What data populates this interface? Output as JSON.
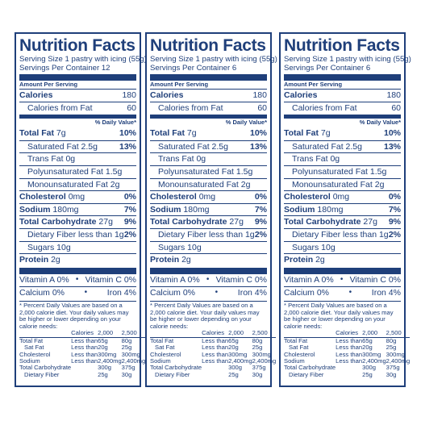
{
  "panels": [
    {
      "title": "Nutrition Facts",
      "serving_size": "Serving Size 1 pastry with icing (55g)",
      "servings": "Servings Per Container 12",
      "amount_per_serving": "Amount Per Serving",
      "calories_label": "Calories",
      "calories_value": "180",
      "calories_fat_label": "Calories from Fat",
      "calories_fat_value": "60",
      "dv_header": "% Daily Value*",
      "nutrients": [
        {
          "name": "Total Fat",
          "amount": "7g",
          "dv": "10%"
        },
        {
          "name": "Saturated Fat 2.5g",
          "amount": "",
          "dv": "13%"
        },
        {
          "name": "Trans Fat 0g",
          "amount": "",
          "dv": ""
        },
        {
          "name": "Polyunsaturated Fat 1.5g",
          "amount": "",
          "dv": ""
        },
        {
          "name": "Monounsaturated Fat 2g",
          "amount": "",
          "dv": ""
        },
        {
          "name": "Cholesterol",
          "amount": "0mg",
          "dv": "0%"
        },
        {
          "name": "Sodium",
          "amount": "180mg",
          "dv": "7%"
        },
        {
          "name": "Total Carbohydrate",
          "amount": "27g",
          "dv": "9%"
        },
        {
          "name": "Dietary Fiber less than 1g",
          "amount": "",
          "dv": "2%"
        },
        {
          "name": "Sugars 10g",
          "amount": "",
          "dv": ""
        },
        {
          "name": "Protein",
          "amount": "2g",
          "dv": ""
        }
      ],
      "vitamin_a": "Vitamin A 0%",
      "vitamin_c": "Vitamin C 0%",
      "calcium": "Calcium 0%",
      "iron": "Iron 4%",
      "bullet": "•",
      "footnote": "* Percent Daily Values are based on a 2,000 calorie diet. Your daily values may be higher or lower depending on your calorie needs:",
      "ft_header": [
        "",
        "Calories",
        "2,000",
        "2,500"
      ],
      "ft_rows": [
        [
          "Total Fat",
          "Less than",
          "65g",
          "80g"
        ],
        [
          "Sat Fat",
          "Less than",
          "20g",
          "25g"
        ],
        [
          "Cholesterol",
          "Less than",
          "300mg",
          "300mg"
        ],
        [
          "Sodium",
          "Less than",
          "2,400mg",
          "2,400mg"
        ],
        [
          "Total Carbohydrate",
          "",
          "300g",
          "375g"
        ],
        [
          "Dietary Fiber",
          "",
          "25g",
          "30g"
        ]
      ]
    },
    {
      "title": "Nutrition Facts",
      "serving_size": "Serving Size 1 pastry with icing (55g)",
      "servings": "Servings Per Container 6",
      "amount_per_serving": "Amount Per Serving",
      "calories_label": "Calories",
      "calories_value": "180",
      "calories_fat_label": "Calories from Fat",
      "calories_fat_value": "60",
      "dv_header": "% Daily Value*",
      "nutrients": [
        {
          "name": "Total Fat",
          "amount": "7g",
          "dv": "10%"
        },
        {
          "name": "Saturated Fat 2.5g",
          "amount": "",
          "dv": "13%"
        },
        {
          "name": "Trans Fat 0g",
          "amount": "",
          "dv": ""
        },
        {
          "name": "Polyunsaturated Fat 1.5g",
          "amount": "",
          "dv": ""
        },
        {
          "name": "Monounsaturated Fat 2g",
          "amount": "",
          "dv": ""
        },
        {
          "name": "Cholesterol",
          "amount": "0mg",
          "dv": "0%"
        },
        {
          "name": "Sodium",
          "amount": "180mg",
          "dv": "7%"
        },
        {
          "name": "Total Carbohydrate",
          "amount": "27g",
          "dv": "9%"
        },
        {
          "name": "Dietary Fiber less than 1g",
          "amount": "",
          "dv": "2%"
        },
        {
          "name": "Sugars 10g",
          "amount": "",
          "dv": ""
        },
        {
          "name": "Protein",
          "amount": "2g",
          "dv": ""
        }
      ],
      "vitamin_a": "Vitamin A 0%",
      "vitamin_c": "Vitamin C 0%",
      "calcium": "Calcium 0%",
      "iron": "Iron 4%",
      "bullet": "•",
      "footnote": "* Percent Daily Values are based on a 2,000 calorie diet. Your daily values may be higher or lower depending on your calorie needs:",
      "ft_header": [
        "",
        "Calories",
        "2,000",
        "2,500"
      ],
      "ft_rows": [
        [
          "Total Fat",
          "Less than",
          "65g",
          "80g"
        ],
        [
          "Sat Fat",
          "Less than",
          "20g",
          "25g"
        ],
        [
          "Cholesterol",
          "Less than",
          "300mg",
          "300mg"
        ],
        [
          "Sodium",
          "Less than",
          "2,400mg",
          "2,400mg"
        ],
        [
          "Total Carbohydrate",
          "",
          "300g",
          "375g"
        ],
        [
          "Dietary Fiber",
          "",
          "25g",
          "30g"
        ]
      ]
    },
    {
      "title": "Nutrition Facts",
      "serving_size": "Serving Size 1 pastry with icing (55g)",
      "servings": "Servings Per Container 6",
      "amount_per_serving": "Amount Per Serving",
      "calories_label": "Calories",
      "calories_value": "180",
      "calories_fat_label": "Calories from Fat",
      "calories_fat_value": "60",
      "dv_header": "% Daily Value*",
      "nutrients": [
        {
          "name": "Total Fat",
          "amount": "7g",
          "dv": "10%"
        },
        {
          "name": "Saturated Fat 2.5g",
          "amount": "",
          "dv": "13%"
        },
        {
          "name": "Trans Fat 0g",
          "amount": "",
          "dv": ""
        },
        {
          "name": "Polyunsaturated Fat 1.5g",
          "amount": "",
          "dv": ""
        },
        {
          "name": "Monounsaturated Fat 2g",
          "amount": "",
          "dv": ""
        },
        {
          "name": "Cholesterol",
          "amount": "0mg",
          "dv": "0%"
        },
        {
          "name": "Sodium",
          "amount": "180mg",
          "dv": "7%"
        },
        {
          "name": "Total Carbohydrate",
          "amount": "27g",
          "dv": "9%"
        },
        {
          "name": "Dietary Fiber less than 1g",
          "amount": "",
          "dv": "2%"
        },
        {
          "name": "Sugars 10g",
          "amount": "",
          "dv": ""
        },
        {
          "name": "Protein",
          "amount": "2g",
          "dv": ""
        }
      ],
      "vitamin_a": "Vitamin A 0%",
      "vitamin_c": "Vitamin C 0%",
      "calcium": "Calcium 0%",
      "iron": "Iron 4%",
      "bullet": "•",
      "footnote": "* Percent Daily Values are based on a 2,000 calorie diet. Your daily values may be higher or lower depending on your calorie needs:",
      "ft_header": [
        "",
        "Calories",
        "2,000",
        "2,500"
      ],
      "ft_rows": [
        [
          "Total Fat",
          "Less than",
          "65g",
          "80g"
        ],
        [
          "Sat Fat",
          "Less than",
          "20g",
          "25g"
        ],
        [
          "Cholesterol",
          "Less than",
          "300mg",
          "300mg"
        ],
        [
          "Sodium",
          "Less than",
          "2,400mg",
          "2,400mg"
        ],
        [
          "Total Carbohydrate",
          "",
          "300g",
          "375g"
        ],
        [
          "Dietary Fiber",
          "",
          "25g",
          "30g"
        ]
      ]
    }
  ],
  "colors": {
    "ink": "#1f3f7a",
    "background": "#ffffff"
  }
}
